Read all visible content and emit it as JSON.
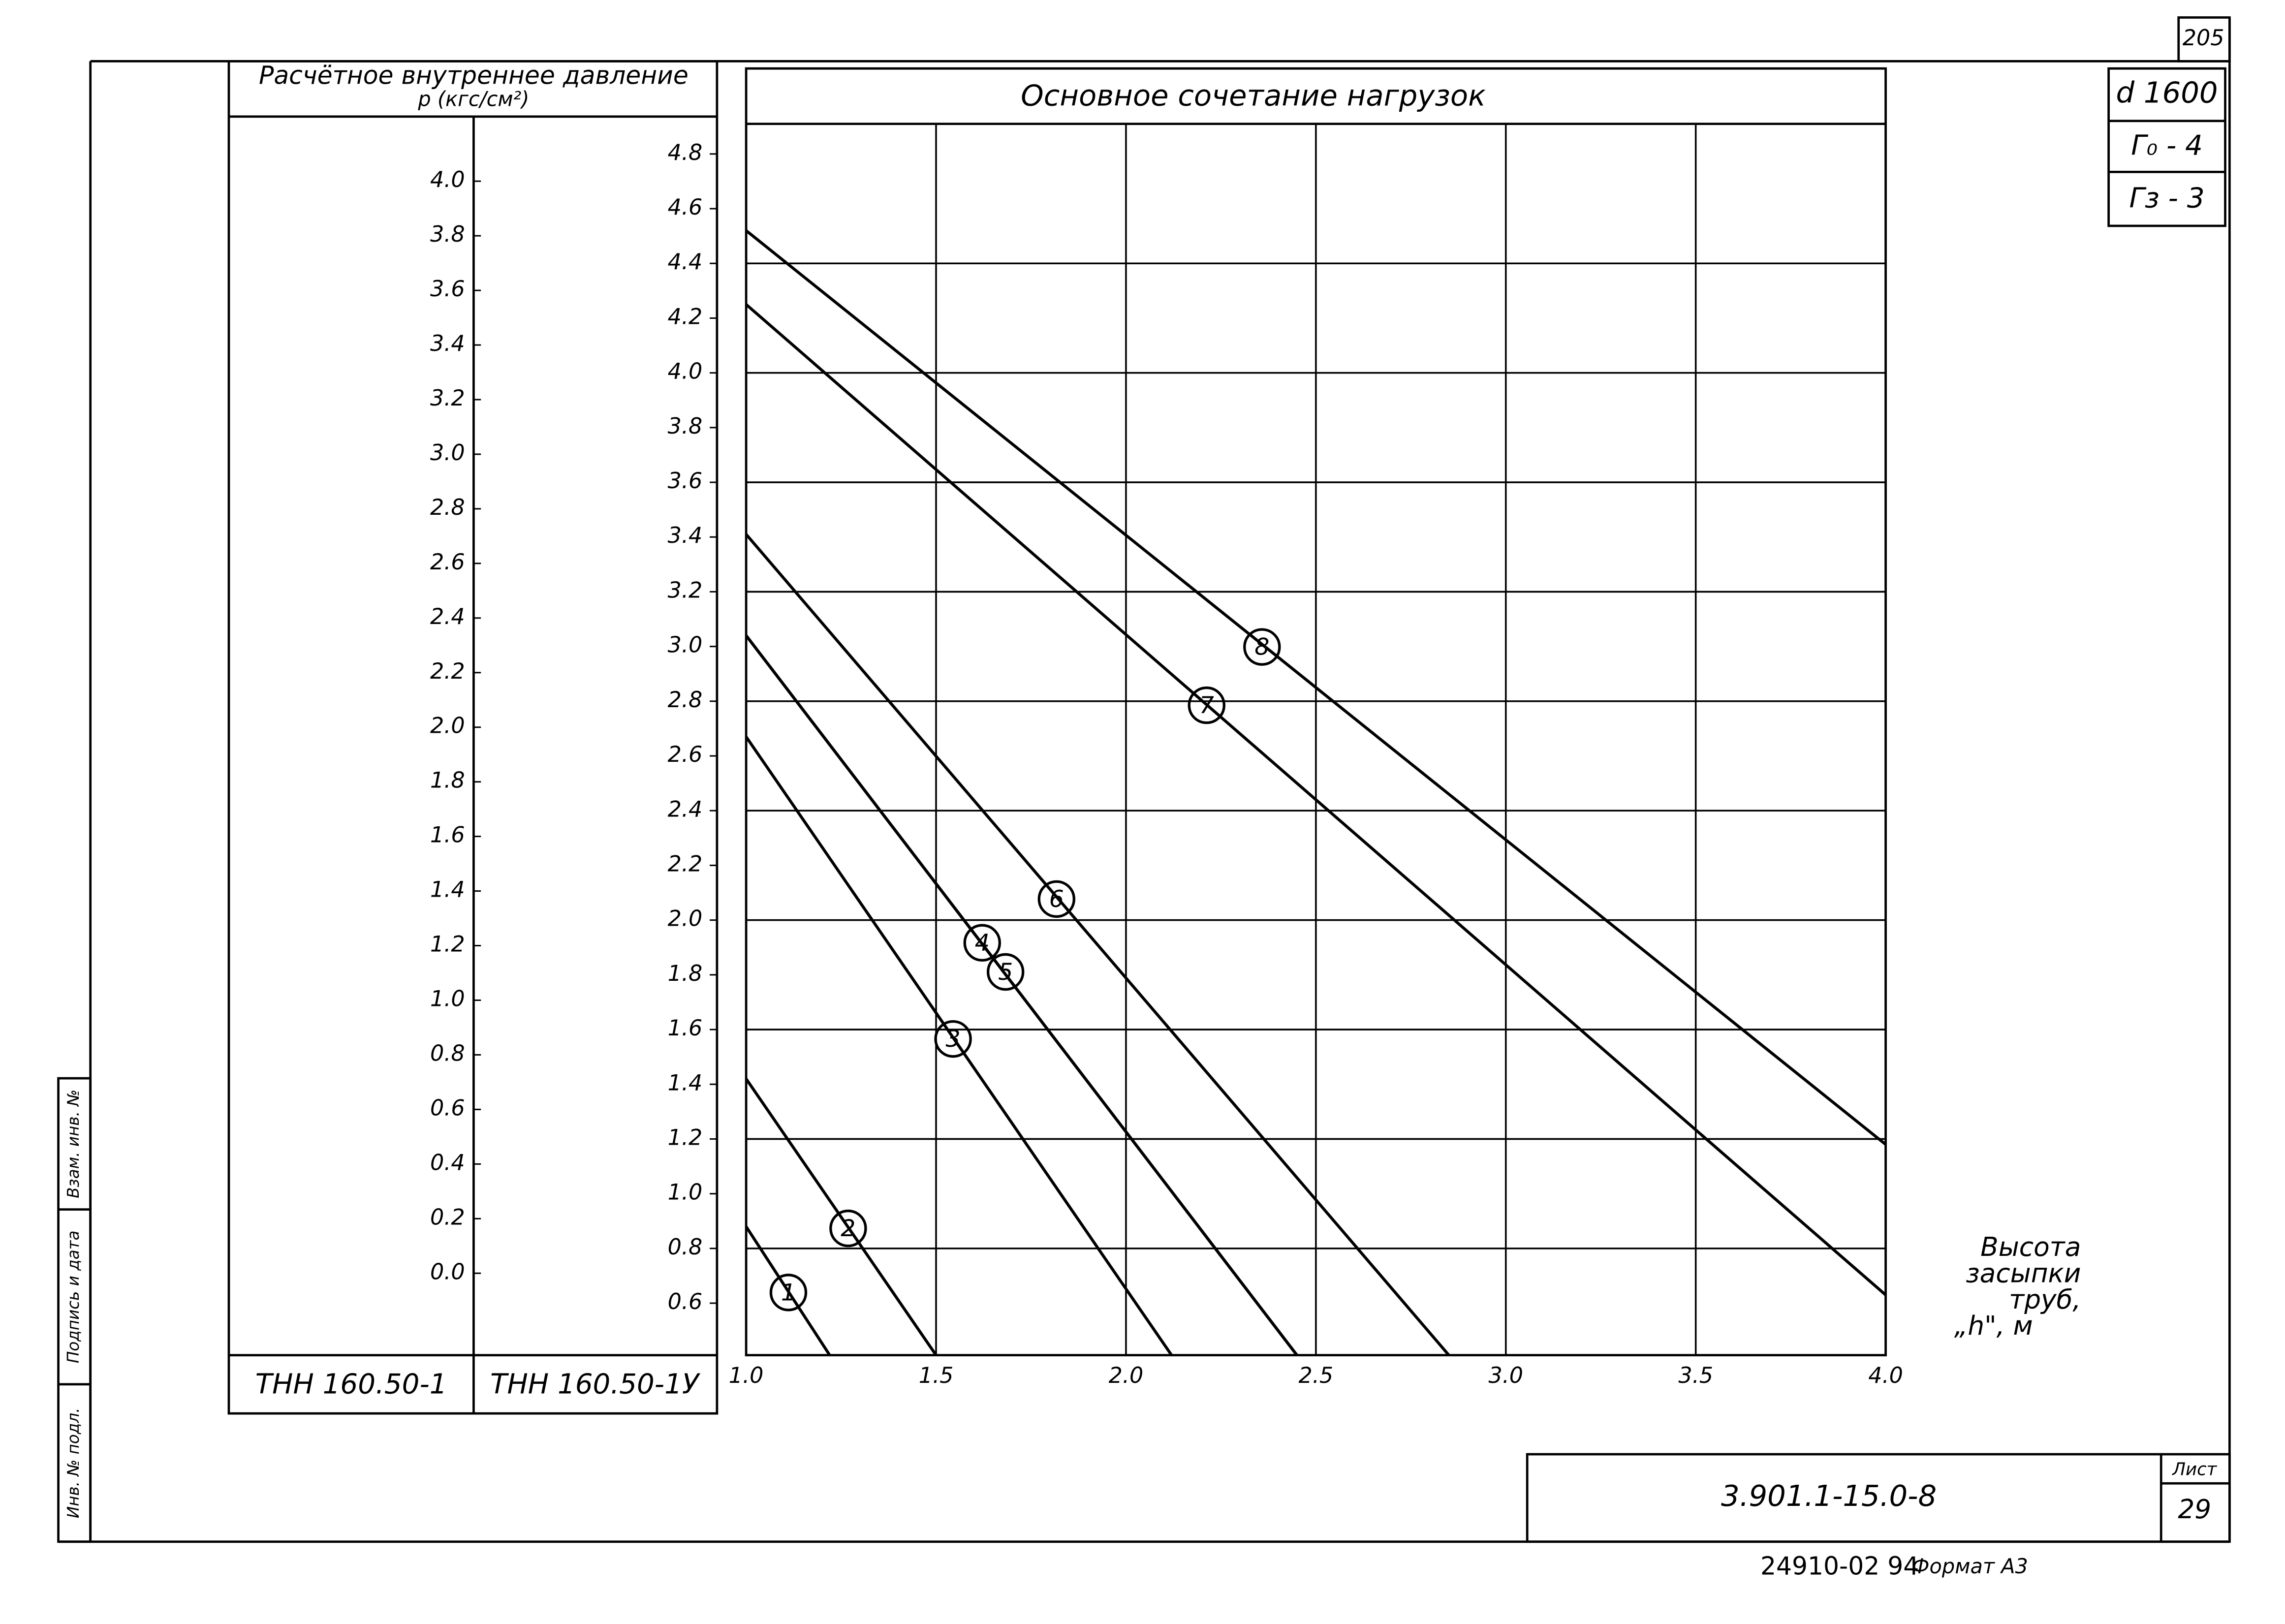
{
  "chart_data": {
    "type": "line",
    "title": "Основное сочетание нагрузок",
    "ytitle": "Расчётное внутреннее давление",
    "yunit": "р (кгс/см²)",
    "xlabel": [
      "Высота",
      "засыпки",
      "труб,",
      "„h\", м"
    ],
    "xlim": [
      1.0,
      4.0
    ],
    "xticks": [
      {
        "value": 1.0,
        "label": "1.0"
      },
      1.5,
      {
        "value": 2.0,
        "label": "2.0"
      },
      2.5,
      {
        "value": 3.0,
        "label": "3.0"
      },
      3.5,
      {
        "value": 4.0,
        "label": "4.0"
      }
    ],
    "ylim": [
      0.41,
      4.91
    ],
    "ylabel": "ТНН 160.50-1У",
    "yticks": [
      0.6,
      0.8,
      {
        "value": 1.0,
        "label": "1.0"
      },
      1.2,
      1.4,
      1.6,
      1.8,
      {
        "value": 2.0,
        "label": "2.0"
      },
      2.2,
      2.4,
      2.6,
      2.8,
      {
        "value": 3.0,
        "label": "3.0"
      },
      3.2,
      3.4,
      3.6,
      3.8,
      {
        "value": 4.0,
        "label": "4.0"
      },
      4.2,
      4.4,
      4.6,
      4.8
    ],
    "ygrid": [
      0.8,
      1.2,
      1.6,
      2.0,
      2.4,
      2.8,
      3.2,
      3.6,
      4.0,
      4.4
    ],
    "y2lim": [
      -0.3,
      4.21
    ],
    "y2label": "ТНН 160.50-1",
    "y2ticks": [
      {
        "value": 0.0,
        "label": "0.0"
      },
      0.2,
      0.4,
      0.6,
      0.8,
      {
        "value": 1.0,
        "label": "1.0"
      },
      1.2,
      1.4,
      1.6,
      1.8,
      {
        "value": 2.0,
        "label": "2.0"
      },
      2.2,
      2.4,
      2.6,
      2.8,
      {
        "value": 3.0,
        "label": "3.0"
      },
      3.2,
      3.4,
      3.6,
      3.8,
      {
        "value": 4.0,
        "label": "4.0"
      }
    ],
    "grid": true,
    "series": [
      {
        "name": "1",
        "color": "#000000",
        "x": [
          1.0,
          1.22
        ],
        "values": [
          0.88,
          0.41
        ]
      },
      {
        "name": "2",
        "color": "#000000",
        "x": [
          1.0,
          1.5
        ],
        "values": [
          1.42,
          0.41
        ]
      },
      {
        "name": "3",
        "color": "#000000",
        "x": [
          1.0,
          2.12
        ],
        "values": [
          2.67,
          0.41
        ]
      },
      {
        "name": "4",
        "color": "#000000",
        "x": [
          1.0,
          2.45
        ],
        "values": [
          3.04,
          0.41
        ]
      },
      {
        "name": "5",
        "color": "#000000",
        "x": [
          1.0,
          2.45
        ],
        "values": [
          3.04,
          0.41
        ]
      },
      {
        "name": "6",
        "color": "#000000",
        "x": [
          1.0,
          2.85
        ],
        "values": [
          3.41,
          0.41
        ]
      },
      {
        "name": "7",
        "color": "#000000",
        "x": [
          1.0,
          4.0
        ],
        "values": [
          4.25,
          0.63
        ]
      },
      {
        "name": "8",
        "color": "#000000",
        "x": [
          1.0,
          4.0
        ],
        "values": [
          4.52,
          1.18
        ]
      }
    ]
  },
  "stamp": {
    "page": "205",
    "diameter": "d 1600",
    "g0": "Г₀ - 4",
    "g3": "Гз - 3",
    "code": "3.901.1-15.0-8",
    "sheet_label": "Лист",
    "sheet": "29",
    "footer": "24910-02  94",
    "format": "Формат А3",
    "side": [
      "Инв. № подл.",
      "Подпись и дата",
      "Взам. инв. №"
    ]
  }
}
